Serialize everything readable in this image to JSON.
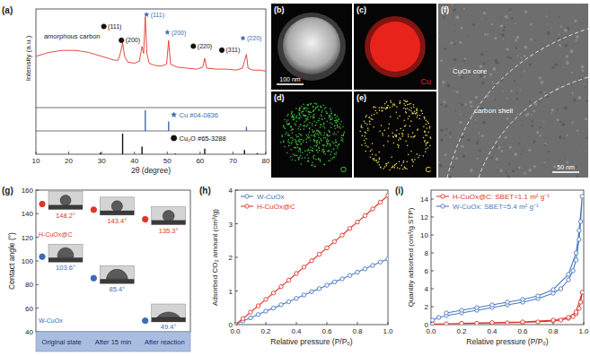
{
  "chart_data": [
    {
      "type": "spectrum",
      "title": "(a)",
      "x_label": "2θ (degree)",
      "y_label": "Intensity (a.u.)",
      "xlim": [
        10,
        80
      ],
      "xticks": [
        10,
        20,
        30,
        40,
        50,
        60,
        70,
        80
      ],
      "ylim": [
        0,
        100
      ],
      "y2lim": [
        0,
        100
      ],
      "tick_labels": "x",
      "series": [
        {
          "color": "#e0352b",
          "x": [
            10,
            12,
            14,
            16,
            18,
            20,
            22,
            24,
            26,
            28,
            30,
            32,
            34,
            35,
            35.8,
            36.4,
            37,
            38,
            40,
            41.5,
            42.3,
            42.8,
            43.3,
            43.8,
            44.5,
            46,
            48,
            49.8,
            50.4,
            51,
            53,
            56,
            59,
            60.8,
            61.4,
            62,
            65,
            68,
            71,
            72.9,
            73.5,
            74.1,
            74.6,
            76,
            78,
            80
          ],
          "values": [
            52,
            54,
            56,
            57,
            58,
            58,
            58,
            57,
            56,
            54,
            52,
            50,
            48,
            48,
            56,
            66,
            52,
            46,
            45,
            47,
            62,
            55,
            92,
            55,
            45,
            43,
            42,
            44,
            68,
            44,
            41,
            40,
            39,
            41,
            50,
            40,
            39,
            39,
            38,
            40,
            47,
            54,
            40,
            38,
            38,
            37
          ]
        },
        {
          "name": "Cu #04-0836",
          "type": "stick",
          "axis": "y2",
          "color": "#3d6cb3",
          "marker": "star",
          "x": [
            43.3,
            50.4,
            74.1
          ],
          "values": [
            100,
            46,
            20
          ]
        },
        {
          "name": "Cu₂O #65-3288",
          "type": "stick",
          "axis": "y2",
          "color": "#111111",
          "marker": "circle",
          "x": [
            29.6,
            36.4,
            42.3,
            52.4,
            61.4,
            73.5,
            77.4
          ],
          "values": [
            8,
            100,
            37,
            3,
            27,
            21,
            6
          ]
        }
      ],
      "annotations": [
        {
          "text": "amorphous carbon",
          "x": 21,
          "y": 70
        },
        {
          "text": "(111)",
          "x": 34,
          "y": 80,
          "series": 2
        },
        {
          "text": "(200)",
          "x": 39.5,
          "y": 66,
          "series": 2
        },
        {
          "text": "(111)",
          "x": 47,
          "y": 92,
          "series": 1
        },
        {
          "text": "(200)",
          "x": 53.5,
          "y": 74,
          "series": 1
        },
        {
          "text": "(220)",
          "x": 61.4,
          "y": 60,
          "series": 2
        },
        {
          "text": "(311)",
          "x": 70,
          "y": 56,
          "series": 2
        },
        {
          "text": "(220)",
          "x": 76.5,
          "y": 68,
          "series": 1
        }
      ]
    },
    {
      "type": "dot",
      "title": "(g)",
      "y_label": "Contact angle (°)",
      "categories": [
        "Original state",
        "After 15 min",
        "After reaction"
      ],
      "ylim": [
        40,
        160
      ],
      "yticks": [
        40,
        60,
        80,
        100,
        120,
        140,
        160
      ],
      "data_labels": true,
      "series": [
        {
          "name": "H-CuOx@C",
          "color": "#e0352b",
          "marker": "circle",
          "values": [
            148.2,
            143.4,
            135.3
          ],
          "value_labels": [
            "148.2°",
            "143.4°",
            "135.3°"
          ]
        },
        {
          "name": "W-CuOx",
          "color": "#3d6cb3",
          "marker": "circle",
          "values": [
            103.6,
            85.4,
            49.4
          ],
          "value_labels": [
            "103.6°",
            "85.4°",
            "49.4°"
          ]
        }
      ]
    },
    {
      "type": "line",
      "title": "(h)",
      "x_label": "Relative pressure (P/P₀)",
      "y_label": "Adsorbed CO₂ amount (cm³/g)",
      "xlim": [
        0,
        1
      ],
      "xticks": [
        {
          "value": 0,
          "label": "0.0"
        },
        0.2,
        0.4,
        0.6,
        0.8,
        {
          "value": 1,
          "label": "1.0"
        }
      ],
      "ylim": [
        0,
        4
      ],
      "yticks": [
        0,
        1,
        2,
        3,
        4
      ],
      "legend": "upper left",
      "series": [
        {
          "name": "W-CuOx",
          "color": "#4a78c2",
          "marker": "circle",
          "x": [
            0,
            0.05,
            0.1,
            0.15,
            0.2,
            0.25,
            0.3,
            0.35,
            0.4,
            0.45,
            0.5,
            0.55,
            0.6,
            0.65,
            0.7,
            0.75,
            0.8,
            0.85,
            0.9,
            0.95,
            1
          ],
          "values": [
            0,
            0.11,
            0.2,
            0.3,
            0.4,
            0.49,
            0.59,
            0.68,
            0.78,
            0.88,
            0.98,
            1.07,
            1.17,
            1.27,
            1.36,
            1.46,
            1.56,
            1.66,
            1.76,
            1.86,
            1.95
          ]
        },
        {
          "name": "H-CuOx@C",
          "color": "#e0352b",
          "marker": "circle",
          "x": [
            0,
            0.05,
            0.1,
            0.15,
            0.2,
            0.25,
            0.3,
            0.35,
            0.4,
            0.45,
            0.5,
            0.55,
            0.6,
            0.65,
            0.7,
            0.75,
            0.8,
            0.85,
            0.9,
            0.95,
            1
          ],
          "values": [
            0,
            0.18,
            0.37,
            0.56,
            0.75,
            0.94,
            1.13,
            1.32,
            1.52,
            1.71,
            1.9,
            2.09,
            2.28,
            2.47,
            2.66,
            2.86,
            3.05,
            3.24,
            3.44,
            3.64,
            3.84
          ]
        }
      ]
    },
    {
      "type": "line",
      "title": "(i)",
      "x_label": "Relative pressure (P/P₀)",
      "y_label": "Quantity adsorbed (cm³/g STP)",
      "xlim": [
        0,
        1
      ],
      "xticks": [
        {
          "value": 0,
          "label": "0.0"
        },
        0.2,
        0.4,
        0.6,
        0.8,
        {
          "value": 1,
          "label": "1.0"
        }
      ],
      "ylim": [
        0,
        15
      ],
      "yticks": [
        0,
        2,
        4,
        6,
        8,
        10,
        12,
        14
      ],
      "legend": "upper left",
      "series": [
        {
          "name": "H-CuOx@C: SBET=1.1 m² g⁻¹",
          "color": "#e0352b",
          "marker": "circle",
          "x": [
            0.01,
            0.1,
            0.2,
            0.3,
            0.4,
            0.5,
            0.6,
            0.7,
            0.8,
            0.85,
            0.9,
            0.93,
            0.95,
            0.97,
            0.98,
            0.99,
            0.95,
            0.9,
            0.8,
            0.6,
            0.4,
            0.2
          ],
          "values": [
            0.05,
            0.1,
            0.12,
            0.15,
            0.18,
            0.2,
            0.25,
            0.3,
            0.4,
            0.5,
            0.7,
            0.9,
            1.2,
            1.8,
            2.5,
            3.6,
            1.4,
            0.8,
            0.5,
            0.3,
            0.22,
            0.15
          ]
        },
        {
          "name": "W-CuOx: SBET=5.4 m² g⁻¹",
          "color": "#4a78c2",
          "marker": "circle",
          "x": [
            0.01,
            0.05,
            0.1,
            0.2,
            0.3,
            0.4,
            0.5,
            0.6,
            0.7,
            0.8,
            0.85,
            0.9,
            0.93,
            0.95,
            0.97,
            0.98,
            0.99,
            0.97,
            0.95,
            0.9,
            0.8,
            0.7,
            0.6,
            0.5,
            0.4,
            0.3,
            0.2,
            0.1
          ],
          "values": [
            0.5,
            0.8,
            1.0,
            1.3,
            1.6,
            1.9,
            2.2,
            2.5,
            2.9,
            3.5,
            4.0,
            5.0,
            6.0,
            7.2,
            9.5,
            11.5,
            14.3,
            10.5,
            8.0,
            5.6,
            3.9,
            3.2,
            2.8,
            2.5,
            2.2,
            1.9,
            1.6,
            1.3
          ]
        }
      ]
    }
  ],
  "images": [
    {
      "label": "(b)",
      "scale_bar": "100 nm"
    },
    {
      "label": "(c)",
      "element": "Cu",
      "color": "#e8231c"
    },
    {
      "label": "(d)",
      "element": "O",
      "color": "#3cc43c"
    },
    {
      "label": "(e)",
      "element": "C",
      "color": "#e8dc50"
    },
    {
      "label": "(f)",
      "annotations": [
        "CuOx core",
        "carbon shell"
      ],
      "scale_bar": "50 nm"
    }
  ]
}
